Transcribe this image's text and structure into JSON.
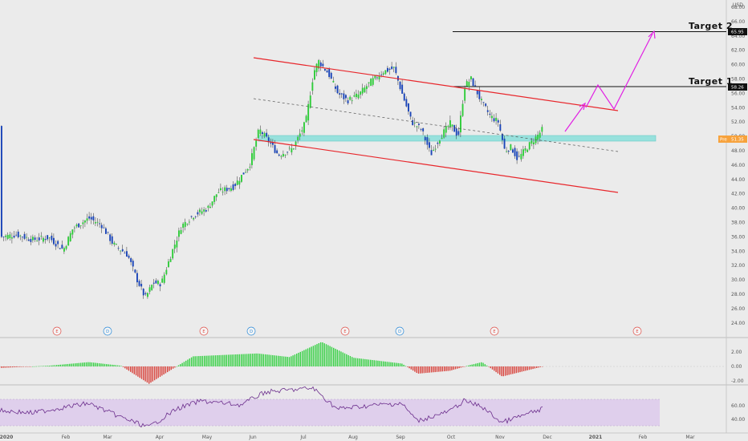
{
  "currency": "USD",
  "y_ticks": [
    "68.00",
    "66.00",
    "64.00",
    "62.00",
    "60.00",
    "58.00",
    "56.00",
    "54.00",
    "52.00",
    "50.00",
    "48.00",
    "46.00",
    "44.00",
    "42.00",
    "40.00",
    "38.00",
    "36.00",
    "34.00",
    "32.00",
    "30.00",
    "28.00",
    "26.00",
    "24.00"
  ],
  "osc_ticks": [
    "2.00",
    "0.00",
    "-2.00"
  ],
  "rsi_ticks": [
    "60.00",
    "40.00"
  ],
  "x_ticks": [
    "2020",
    "Feb",
    "Mar",
    "Apr",
    "May",
    "Jun",
    "Jul",
    "Aug",
    "Sep",
    "Oct",
    "Nov",
    "Dec",
    "2021",
    "Feb",
    "Mar"
  ],
  "targets": {
    "target1_label": "Target 1",
    "target1_value": "58.26",
    "target2_label": "Target 2",
    "target2_value": "65.95"
  },
  "current_price": {
    "label": "Pre",
    "value": "51.35"
  },
  "events": [
    "E",
    "D",
    "E",
    "D",
    "E",
    "D",
    "E",
    "E"
  ],
  "colors": {
    "up": "#2fcc3a",
    "down": "#1b45b8",
    "channel": "#e8262b",
    "projection": "#e11fe3",
    "zone": "#8fe0dc",
    "rsi_band": "#dcc8ec",
    "rsi_line": "#6b2d8c"
  },
  "chart_data": {
    "type": "candlestick",
    "x": [
      "2020-01",
      "2020-02",
      "2020-03",
      "2020-04",
      "2020-05",
      "2020-06",
      "2020-07",
      "2020-08",
      "2020-09",
      "2020-10",
      "2020-11",
      "2020-12"
    ],
    "close_approx": [
      36.0,
      37.5,
      31.0,
      29.5,
      39.0,
      42.0,
      60.0,
      58.5,
      50.5,
      57.5,
      47.5,
      51.3
    ],
    "ylim": [
      24,
      68
    ],
    "levels": {
      "target_1": 58.26,
      "target_2": 65.95,
      "support_zone": [
        50.8,
        51.7
      ]
    },
    "channel": {
      "upper": [
        [
          "2020-06",
          62.5
        ],
        [
          "2020-12",
          55.0
        ]
      ],
      "lower": [
        [
          "2020-06",
          51.2
        ],
        [
          "2020-12",
          43.8
        ]
      ]
    },
    "projection_path": [
      50.0,
      55.5,
      53.5,
      58.0,
      55.5,
      65.5
    ],
    "oscillator_range": [
      -2.5,
      2.5
    ],
    "rsi_band": [
      30,
      70
    ]
  }
}
